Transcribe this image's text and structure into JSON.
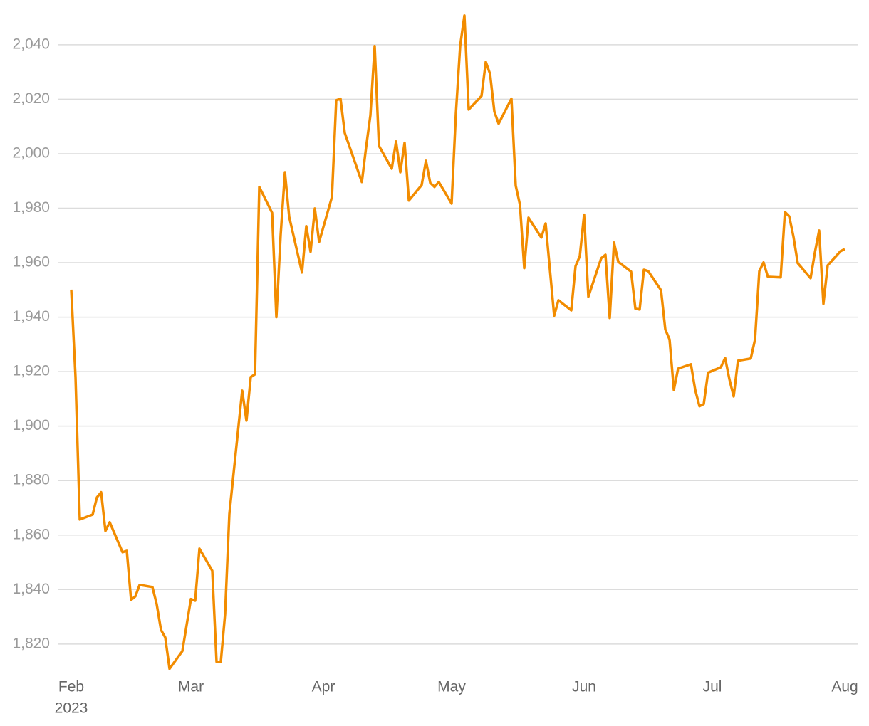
{
  "chart_data": {
    "type": "line",
    "x": [
      0,
      1,
      2,
      5,
      6,
      7,
      8,
      9,
      12,
      13,
      14,
      15,
      16,
      19,
      20,
      21,
      22,
      23,
      26,
      28,
      29,
      30,
      33,
      34,
      35,
      36,
      37,
      40,
      41,
      42,
      43,
      44,
      47,
      48,
      49,
      50,
      51,
      54,
      55,
      56,
      57,
      58,
      61,
      62,
      63,
      64,
      68,
      69,
      70,
      71,
      72,
      75,
      76,
      77,
      78,
      79,
      82,
      83,
      84,
      85,
      86,
      89,
      90,
      91,
      92,
      93,
      96,
      97,
      98,
      99,
      100,
      103,
      104,
      105,
      106,
      107,
      110,
      111,
      113,
      114,
      117,
      118,
      119,
      120,
      121,
      124,
      125,
      126,
      127,
      128,
      131,
      132,
      133,
      134,
      135,
      138,
      139,
      140,
      141,
      142,
      145,
      146,
      147,
      148,
      149,
      152,
      153,
      154,
      155,
      156,
      159,
      160,
      161,
      162,
      163,
      166,
      167,
      168,
      169,
      170,
      173,
      174,
      175,
      176,
      177,
      180,
      181
    ],
    "series": [
      {
        "color": "#f28c00",
        "values": [
          1950.1,
          1918,
          1865.7,
          1867.5,
          1873.8,
          1875.7,
          1861.5,
          1864.7,
          1853.7,
          1854.2,
          1836.2,
          1837.5,
          1841.7,
          1840.9,
          1834.6,
          1825.2,
          1822.4,
          1810.9,
          1817.4,
          1836.5,
          1835.9,
          1855,
          1846.9,
          1813.5,
          1813.5,
          1831,
          1867.8,
          1913,
          1902,
          1918,
          1919,
          1987.8,
          1978.3,
          1940,
          1970.2,
          1993.2,
          1976.8,
          1956.4,
          1973.4,
          1964,
          1979.9,
          1967.6,
          1984.1,
          2019.6,
          2020.2,
          2007.6,
          1989.6,
          2002.4,
          2014.1,
          2039.5,
          2002.9,
          1994.5,
          2004.5,
          1993.2,
          2004,
          1982.8,
          1988.5,
          1997.4,
          1989.3,
          1987.8,
          1989.6,
          1981.7,
          2014.7,
          2039.5,
          2050.7,
          2016.2,
          2021.2,
          2033.7,
          2029.3,
          2015.5,
          2011,
          2020.2,
          1988.3,
          1981.2,
          1958,
          1976.5,
          1969.2,
          1974.4,
          1940.5,
          1946.2,
          1942.5,
          1958.7,
          1962.4,
          1977.6,
          1947.5,
          1961.6,
          1962.9,
          1939.7,
          1967.4,
          1960.3,
          1956.7,
          1943.1,
          1942.8,
          1957.4,
          1956.9,
          1949.9,
          1935.5,
          1931.8,
          1913.3,
          1921.1,
          1922.7,
          1913.3,
          1907.3,
          1908.1,
          1919.6,
          1921.6,
          1925,
          1917.2,
          1910.9,
          1924,
          1924.8,
          1931.8,
          1956.9,
          1960.1,
          1954.8,
          1954.6,
          1978.6,
          1977,
          1969.5,
          1959.8,
          1954.3,
          1963.7,
          1971.8,
          1944.9,
          1959,
          1964.2,
          1965
        ]
      }
    ],
    "xlim": [
      0,
      181
    ],
    "xticks": [
      {
        "value": 0,
        "label": "Feb"
      },
      {
        "value": 28,
        "label": "Mar"
      },
      {
        "value": 59,
        "label": "Apr"
      },
      {
        "value": 89,
        "label": "May"
      },
      {
        "value": 120,
        "label": "Jun"
      },
      {
        "value": 150,
        "label": "Jul"
      },
      {
        "value": 181,
        "label": "Aug"
      }
    ],
    "xtick_sublabel": "2023",
    "ylim": [
      1809.5,
      2051.2
    ],
    "yticks": [
      {
        "value": 1820,
        "label": "1,820"
      },
      {
        "value": 1840,
        "label": "1,840"
      },
      {
        "value": 1860,
        "label": "1,860"
      },
      {
        "value": 1880,
        "label": "1,880"
      },
      {
        "value": 1900,
        "label": "1,900"
      },
      {
        "value": 1920,
        "label": "1,920"
      },
      {
        "value": 1940,
        "label": "1,940"
      },
      {
        "value": 1960,
        "label": "1,960"
      },
      {
        "value": 1980,
        "label": "1,980"
      },
      {
        "value": 2000,
        "label": "2,000"
      },
      {
        "value": 2020,
        "label": "2,020"
      },
      {
        "value": 2040,
        "label": "2,040"
      }
    ],
    "grid": true
  }
}
